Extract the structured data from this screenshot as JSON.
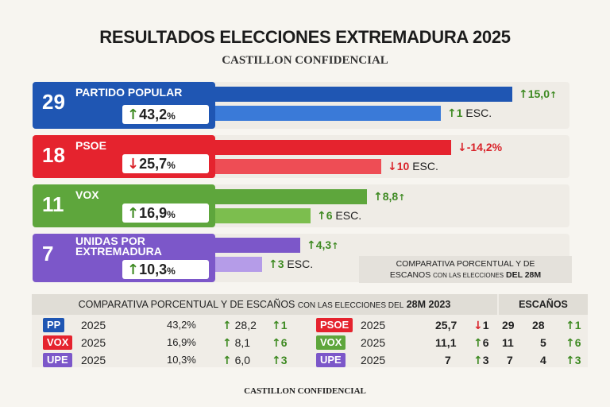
{
  "title": "RESULTADOS ELECCIONES EXTREMADURA 2025",
  "subtitle": "CASTILLON CONFIDENCIAL",
  "colors": {
    "pp": "#1f56b3",
    "psoe": "#e5232e",
    "vox": "#5ea63c",
    "upe": "#7c57c9",
    "up": "#3e8a22",
    "down": "#d9232a"
  },
  "chart_data": {
    "type": "bar",
    "categories": [
      "PARTIDO POPULAR",
      "PSOE",
      "VOX",
      "UNIDAS POR EXTREMADURA"
    ],
    "seats": [
      29,
      18,
      11,
      7
    ],
    "percent": [
      43.2,
      25.7,
      16.9,
      10.3
    ],
    "percent_change_labels": [
      "15,0",
      "-14,2%",
      "8,8",
      "4,3"
    ],
    "seat_change_labels": [
      "1",
      "10",
      "6",
      "3"
    ],
    "pct_labels": [
      "43,2",
      "25,7",
      "16,9",
      "10,3"
    ],
    "esc_unit": "ESC.",
    "pct_unit": "%"
  },
  "compare_box": {
    "line1": "COMPARATIVA PORCENTUAL Y DE",
    "line2a": "ESCANOS",
    "line2b": "CON LAS ELECCIONES",
    "line2c": "DEL 28M"
  },
  "table": {
    "header_a": "COMPARATIVA PORCENTUAL Y DE ESCAÑOS",
    "header_b": "CON LAS ELECCIONES DEL",
    "header_c": "28M 2023",
    "header_seats": "ESCAÑOS",
    "rows": [
      {
        "tag": "PP",
        "year": "2025",
        "pct": "43,2%",
        "prev": "28,2",
        "d": "1",
        "tag2": "PSOE",
        "year2": "2025",
        "v2": "25,7",
        "d2": "1",
        "s": "29",
        "s2": "28",
        "sd": "1"
      },
      {
        "tag": "VOX",
        "year": "2025",
        "pct": "16,9%",
        "prev": "8,1",
        "d": "6",
        "tag2": "VOX",
        "year2": "2025",
        "v2": "11,1",
        "d2": "6",
        "s": "11",
        "s2": "5",
        "sd": "6"
      },
      {
        "tag": "UPE",
        "year": "2025",
        "pct": "10,3%",
        "prev": "6,0",
        "d": "3",
        "tag2": "UPE",
        "year2": "2025",
        "v2": "7",
        "d2": "3",
        "s": "7",
        "s2": "4",
        "sd": "3"
      }
    ]
  },
  "footer": "CASTILLON CONFIDENCIAL"
}
